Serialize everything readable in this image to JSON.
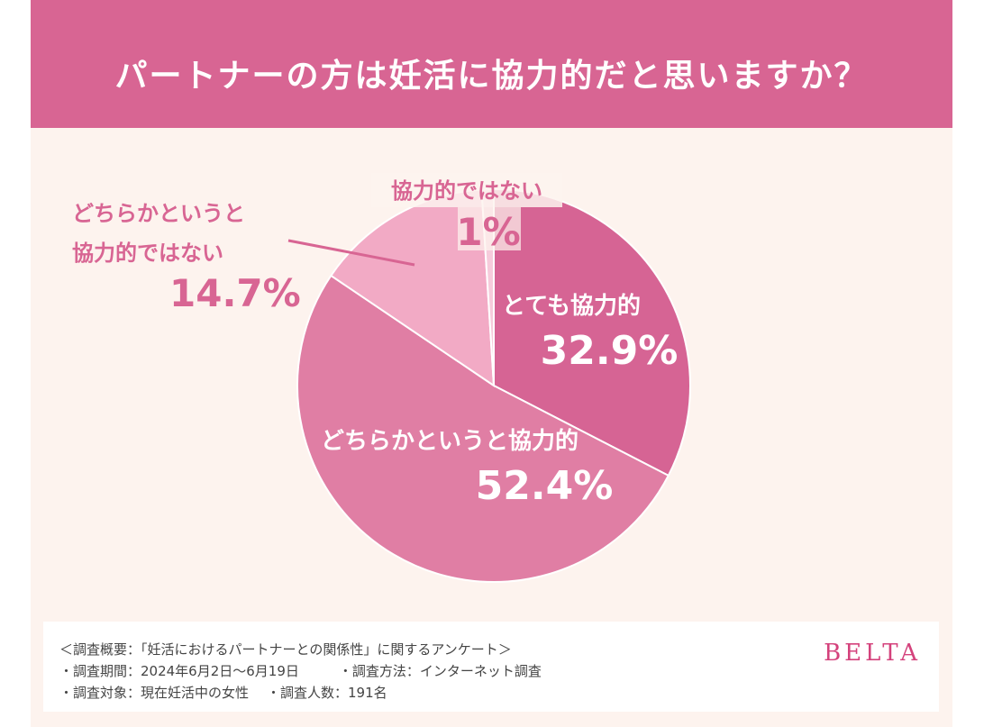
{
  "header": {
    "title": "パートナーの方は妊活に協力的だと思いますか？"
  },
  "chart_data": {
    "type": "pie",
    "title": "パートナーの方は妊活に協力的だと思いますか？",
    "slices": [
      {
        "label": "とても協力的",
        "value": 32.9,
        "display": "32.9%",
        "color": "#d66494"
      },
      {
        "label": "どちらかというと協力的",
        "value": 52.4,
        "display": "52.4%",
        "color": "#e07ea4"
      },
      {
        "label": "どちらかというと協力的ではない",
        "label_lines": [
          "どちらかというと",
          "協力的ではない"
        ],
        "value": 14.7,
        "display": "14.7%",
        "color": "#f2aac5"
      },
      {
        "label": "協力的ではない",
        "value": 1,
        "display": "1%",
        "color": "#f6cbdb"
      }
    ],
    "start_angle_deg": 0,
    "direction": "clockwise",
    "legend": "none"
  },
  "footer": {
    "overview": "＜調査概要：「妊活におけるパートナーとの関係性」に関するアンケート＞",
    "period": "・調査期間：2024年6月2日〜6月19日",
    "method": "・調査方法：インターネット調査",
    "target": "・調査対象：現在妊活中の女性",
    "count": "・調査人数：191名",
    "brand": "BELTA"
  }
}
